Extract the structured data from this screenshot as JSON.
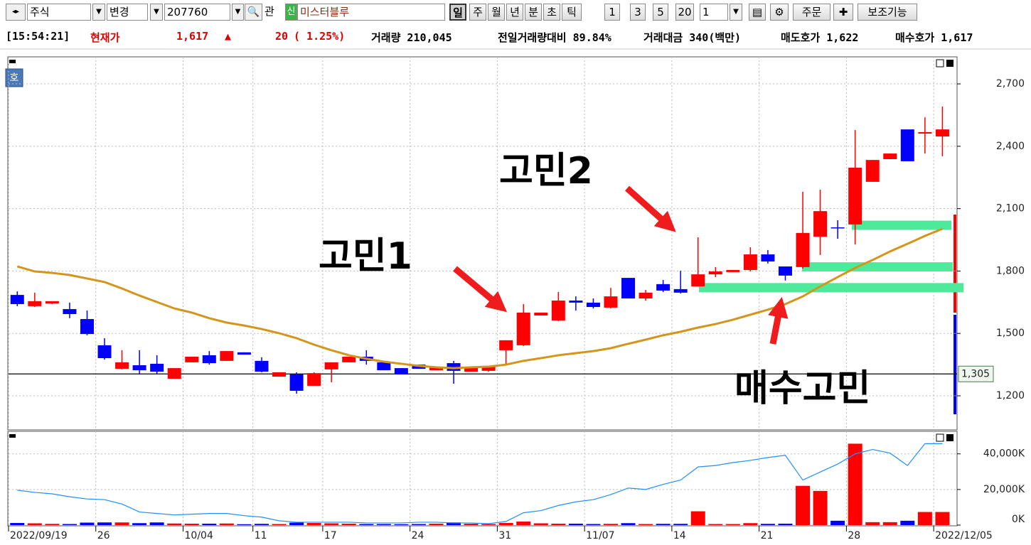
{
  "toolbar": {
    "market": "주식",
    "change": "변경",
    "code": "207760",
    "related": "관",
    "new_badge": "신",
    "name": "미스터블루",
    "periods": [
      "일",
      "주",
      "월",
      "년",
      "분",
      "초",
      "틱"
    ],
    "minute_units": [
      "1",
      "3",
      "5",
      "20"
    ],
    "count": "1",
    "order": "주문",
    "indicators": "보조기능"
  },
  "info_bar": {
    "time": "[15:54:21]",
    "price_label": "현재가",
    "price": "1,617",
    "arrow": "▲",
    "change": "20",
    "change_rate": "( 1.25%)",
    "volume": "거래량 210,045",
    "volume_ratio": "전일거래량대비 89.84%",
    "amount": "거래대금 340(백만)",
    "ask": "매도호가 1,622",
    "bid": "매수호가 1,617"
  },
  "badge": "호",
  "chart_data": [
    {
      "type": "candlestick",
      "categories": [
        "2022/09/19",
        null,
        null,
        null,
        null,
        "26",
        null,
        null,
        null,
        null,
        "10/04",
        null,
        null,
        null,
        "11",
        null,
        null,
        null,
        "17",
        null,
        null,
        null,
        null,
        "24",
        null,
        null,
        null,
        null,
        "31",
        null,
        null,
        null,
        null,
        "11/07",
        null,
        null,
        null,
        null,
        "14",
        null,
        null,
        null,
        null,
        "21",
        null,
        null,
        null,
        null,
        "28",
        null,
        null,
        null,
        null,
        "2022/12/05"
      ],
      "open": [
        1685,
        1631,
        1644,
        1617,
        1569,
        1443,
        1330,
        1347,
        1354,
        1282,
        1361,
        1395,
        1368,
        1409,
        1368,
        1292,
        1303,
        1248,
        1327,
        1361,
        1388,
        1361,
        1333,
        1350,
        1323,
        1357,
        1316,
        1320,
        1419,
        1443,
        1586,
        1562,
        1658,
        1648,
        1624,
        1767,
        1668,
        1737,
        1713,
        1726,
        1784,
        1795,
        1805,
        1880,
        1822,
        1819,
        1965,
        2010,
        2024,
        2229,
        2338,
        2481,
        2461,
        2447
      ],
      "high": [
        1702,
        1696,
        1655,
        1648,
        1610,
        1477,
        1419,
        1419,
        1395,
        1333,
        1388,
        1415,
        1415,
        1409,
        1385,
        1313,
        1313,
        1313,
        1361,
        1388,
        1419,
        1361,
        1333,
        1350,
        1340,
        1368,
        1340,
        1340,
        1467,
        1641,
        1600,
        1699,
        1678,
        1668,
        1719,
        1767,
        1709,
        1757,
        1801,
        1962,
        1819,
        1805,
        1914,
        1901,
        1822,
        2181,
        2191,
        2044,
        2478,
        2334,
        2365,
        2481,
        2539,
        2591
      ],
      "low": [
        1631,
        1627,
        1641,
        1573,
        1491,
        1374,
        1327,
        1303,
        1306,
        1282,
        1361,
        1350,
        1368,
        1398,
        1313,
        1292,
        1210,
        1248,
        1265,
        1361,
        1350,
        1323,
        1303,
        1330,
        1323,
        1258,
        1316,
        1316,
        1350,
        1439,
        1586,
        1559,
        1610,
        1620,
        1620,
        1668,
        1658,
        1699,
        1692,
        1726,
        1771,
        1795,
        1798,
        1836,
        1754,
        1812,
        1877,
        1955,
        1928,
        2229,
        2338,
        2328,
        2365,
        2352
      ],
      "close": [
        1641,
        1655,
        1655,
        1593,
        1497,
        1381,
        1361,
        1323,
        1316,
        1333,
        1388,
        1357,
        1415,
        1398,
        1316,
        1313,
        1224,
        1309,
        1361,
        1388,
        1368,
        1323,
        1303,
        1330,
        1340,
        1320,
        1340,
        1340,
        1467,
        1600,
        1600,
        1658,
        1648,
        1627,
        1678,
        1668,
        1696,
        1706,
        1696,
        1784,
        1798,
        1805,
        1880,
        1846,
        1778,
        1983,
        2088,
        2006,
        2297,
        2334,
        2365,
        2328,
        2468,
        2481
      ],
      "up_color": "#ff0000",
      "down_color": "#0000ff",
      "ma": {
        "color": "#d4951a",
        "values": [
          1822,
          1798,
          1791,
          1781,
          1764,
          1747,
          1716,
          1682,
          1651,
          1620,
          1600,
          1573,
          1552,
          1538,
          1521,
          1501,
          1477,
          1446,
          1419,
          1395,
          1378,
          1364,
          1354,
          1344,
          1337,
          1333,
          1337,
          1340,
          1350,
          1368,
          1381,
          1395,
          1405,
          1415,
          1429,
          1450,
          1470,
          1491,
          1508,
          1528,
          1545,
          1566,
          1590,
          1614,
          1641,
          1678,
          1726,
          1771,
          1815,
          1853,
          1894,
          1931,
          1969,
          2003
        ]
      },
      "reference_line": {
        "value": 1305,
        "label": "1,305"
      },
      "zones": {
        "color": "#4eea9c",
        "values": [
          2020,
          1820,
          1720
        ]
      },
      "annotations": [
        "고민1",
        "고민2",
        "매수고민"
      ],
      "ylim": [
        1036,
        2830
      ],
      "yticks": [
        {
          "value": 1200,
          "label": "1,200"
        },
        {
          "value": 1500,
          "label": "1,500"
        },
        {
          "value": 1800,
          "label": "1,800"
        },
        {
          "value": 2100,
          "label": "2,100"
        },
        {
          "value": 2400,
          "label": "2,400"
        },
        {
          "value": 2700,
          "label": "2,700"
        }
      ],
      "grid": true
    },
    {
      "type": "bar",
      "values": [
        1200,
        1000,
        700,
        600,
        1400,
        1500,
        1500,
        1100,
        1500,
        900,
        800,
        800,
        900,
        500,
        700,
        600,
        1400,
        1200,
        1000,
        800,
        600,
        600,
        500,
        600,
        800,
        1500,
        800,
        600,
        1200,
        2000,
        1000,
        800,
        800,
        600,
        700,
        1100,
        600,
        700,
        700,
        7750,
        600,
        600,
        1100,
        700,
        800,
        22050,
        19200,
        2450,
        45700,
        1650,
        1650,
        2450,
        7350,
        7350
      ],
      "line": {
        "color": "#1e8fff",
        "values": [
          19600,
          18370,
          17550,
          15920,
          14690,
          14290,
          11840,
          7350,
          6530,
          5710,
          6120,
          6530,
          6530,
          5310,
          4490,
          2450,
          1630,
          1630,
          1630,
          1630,
          1220,
          1220,
          1220,
          1630,
          1630,
          1220,
          1220,
          820,
          2040,
          6940,
          8160,
          11020,
          13060,
          14290,
          17140,
          20820,
          20000,
          22860,
          25310,
          32660,
          33470,
          35100,
          36330,
          37960,
          39190,
          25310,
          29800,
          34290,
          40000,
          42450,
          40410,
          33470,
          45720,
          45720
        ]
      },
      "ylim": [
        0,
        52660
      ],
      "yticks": [
        {
          "value": 0,
          "label": "0K"
        },
        {
          "value": 20000,
          "label": "20,000K"
        },
        {
          "value": 40000,
          "label": "40,000K"
        }
      ],
      "grid": true
    }
  ]
}
